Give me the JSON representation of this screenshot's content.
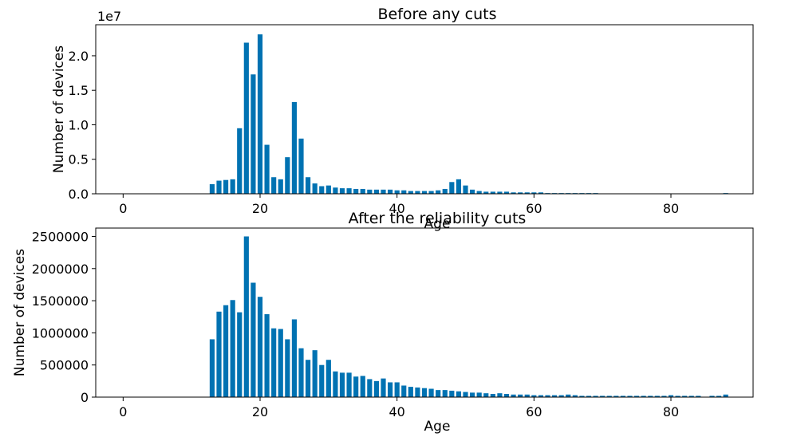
{
  "chart_data": [
    {
      "type": "bar",
      "title": "Before any cuts",
      "xlabel": "Age",
      "ylabel": "Number of devices",
      "offset_text": "1e7",
      "xlim": [
        -4,
        92
      ],
      "ylim": [
        0,
        24500000
      ],
      "x_ticks": [
        0,
        20,
        40,
        60,
        80
      ],
      "y_ticks": [
        0,
        5000000,
        10000000,
        15000000,
        20000000
      ],
      "y_tick_labels": [
        "0.0",
        "0.5",
        "1.0",
        "1.5",
        "2.0"
      ],
      "grid": false,
      "bar_color": "#0072b2",
      "x": [
        13,
        14,
        15,
        16,
        17,
        18,
        19,
        20,
        21,
        22,
        23,
        24,
        25,
        26,
        27,
        28,
        29,
        30,
        31,
        32,
        33,
        34,
        35,
        36,
        37,
        38,
        39,
        40,
        41,
        42,
        43,
        44,
        45,
        46,
        47,
        48,
        49,
        50,
        51,
        52,
        53,
        54,
        55,
        56,
        57,
        58,
        59,
        60,
        61,
        62,
        63,
        64,
        65,
        66,
        67,
        68,
        69,
        88
      ],
      "values": [
        1400000,
        1900000,
        2000000,
        2100000,
        9500000,
        21900000,
        17300000,
        23100000,
        7100000,
        2400000,
        2100000,
        5300000,
        13300000,
        8000000,
        2400000,
        1500000,
        1100000,
        1200000,
        900000,
        800000,
        800000,
        700000,
        700000,
        600000,
        600000,
        600000,
        600000,
        500000,
        500000,
        400000,
        400000,
        400000,
        400000,
        500000,
        700000,
        1700000,
        2100000,
        1200000,
        600000,
        400000,
        300000,
        300000,
        300000,
        300000,
        200000,
        200000,
        200000,
        200000,
        200000,
        100000,
        100000,
        100000,
        100000,
        100000,
        100000,
        100000,
        100000,
        100000
      ]
    },
    {
      "type": "bar",
      "title": "After the reliability cuts",
      "xlabel": "Age",
      "ylabel": "Number of devices",
      "xlim": [
        -4,
        92
      ],
      "ylim": [
        0,
        2630000
      ],
      "x_ticks": [
        0,
        20,
        40,
        60,
        80
      ],
      "y_ticks": [
        0,
        500000,
        1000000,
        1500000,
        2000000,
        2500000
      ],
      "y_tick_labels": [
        "0",
        "500000",
        "1000000",
        "1500000",
        "2000000",
        "2500000"
      ],
      "grid": false,
      "bar_color": "#0072b2",
      "x": [
        13,
        14,
        15,
        16,
        17,
        18,
        19,
        20,
        21,
        22,
        23,
        24,
        25,
        26,
        27,
        28,
        29,
        30,
        31,
        32,
        33,
        34,
        35,
        36,
        37,
        38,
        39,
        40,
        41,
        42,
        43,
        44,
        45,
        46,
        47,
        48,
        49,
        50,
        51,
        52,
        53,
        54,
        55,
        56,
        57,
        58,
        59,
        60,
        61,
        62,
        63,
        64,
        65,
        66,
        67,
        68,
        69,
        70,
        71,
        72,
        73,
        74,
        75,
        76,
        77,
        78,
        79,
        80,
        81,
        82,
        83,
        84,
        86,
        87,
        88
      ],
      "values": [
        900000,
        1330000,
        1430000,
        1510000,
        1320000,
        2500000,
        1780000,
        1560000,
        1290000,
        1070000,
        1060000,
        900000,
        1210000,
        760000,
        580000,
        730000,
        500000,
        580000,
        400000,
        380000,
        380000,
        320000,
        330000,
        280000,
        250000,
        290000,
        230000,
        230000,
        180000,
        160000,
        150000,
        140000,
        130000,
        110000,
        110000,
        100000,
        90000,
        80000,
        70000,
        70000,
        60000,
        50000,
        60000,
        50000,
        40000,
        40000,
        40000,
        30000,
        30000,
        30000,
        30000,
        30000,
        40000,
        30000,
        20000,
        20000,
        20000,
        20000,
        20000,
        20000,
        20000,
        20000,
        20000,
        20000,
        20000,
        20000,
        20000,
        30000,
        20000,
        20000,
        20000,
        20000,
        20000,
        20000,
        40000
      ]
    }
  ]
}
